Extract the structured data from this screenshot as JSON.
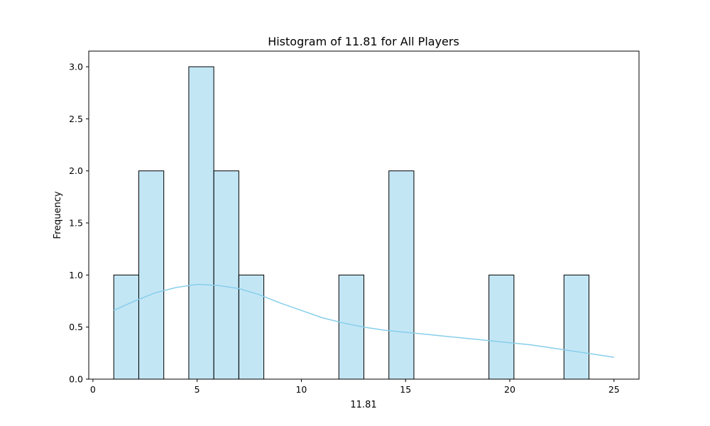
{
  "chart_data": {
    "type": "bar",
    "title": "Histogram of 11.81 for All Players",
    "xlabel": "11.81",
    "ylabel": "Frequency",
    "xlim": [
      -0.2,
      26.2
    ],
    "ylim": [
      0,
      3.15
    ],
    "bin_edges": [
      1.0,
      2.2,
      3.4,
      4.6,
      5.8,
      7.0,
      8.2,
      9.4,
      10.6,
      11.8,
      13.0,
      14.2,
      15.4,
      16.6,
      17.8,
      19.0,
      20.2,
      21.4,
      22.6,
      23.8,
      25.0
    ],
    "counts": [
      1,
      2,
      0,
      3,
      2,
      1,
      0,
      0,
      0,
      1,
      0,
      2,
      0,
      0,
      0,
      1,
      0,
      0,
      1,
      0
    ],
    "x_ticks": [
      0,
      5,
      10,
      15,
      20,
      25
    ],
    "x_tick_labels": [
      "0",
      "5",
      "10",
      "15",
      "20",
      "25"
    ],
    "y_ticks": [
      0,
      0.5,
      1.0,
      1.5,
      2.0,
      2.5,
      3.0
    ],
    "y_tick_labels": [
      "0.0",
      "0.5",
      "1.0",
      "1.5",
      "2.0",
      "2.5",
      "3.0"
    ],
    "kde": {
      "x": [
        1,
        2,
        3,
        4,
        5,
        6,
        7,
        8,
        9,
        10,
        11,
        12,
        13,
        14,
        15,
        16,
        17,
        18,
        19,
        20,
        21,
        22,
        23,
        24,
        25
      ],
      "y": [
        0.66,
        0.75,
        0.83,
        0.88,
        0.91,
        0.9,
        0.87,
        0.81,
        0.73,
        0.66,
        0.59,
        0.54,
        0.5,
        0.47,
        0.45,
        0.43,
        0.41,
        0.39,
        0.37,
        0.35,
        0.33,
        0.3,
        0.27,
        0.24,
        0.21
      ]
    },
    "grid": false,
    "colors": {
      "bar_fill": "#87ceeb",
      "bar_edge": "#000000",
      "kde_line": "#87ceeb"
    }
  }
}
